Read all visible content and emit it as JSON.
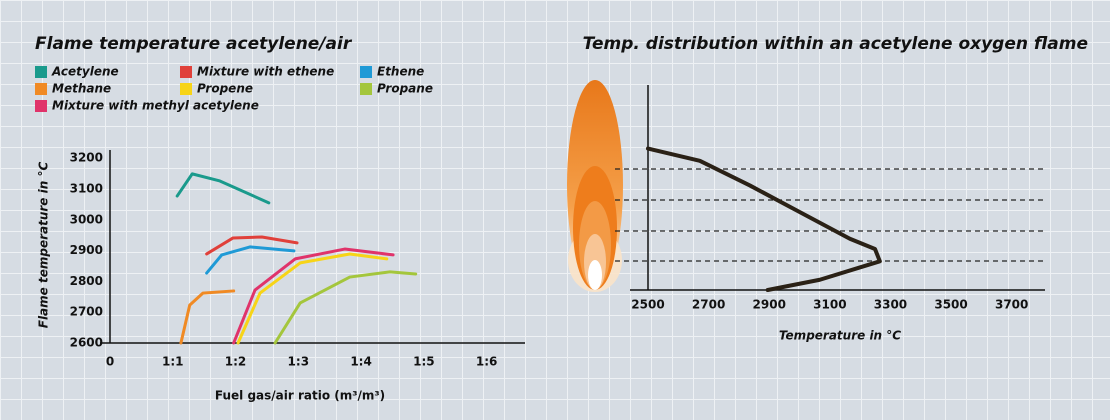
{
  "chart_data": [
    {
      "type": "line",
      "title": "Flame temperature acetylene/air",
      "x_label": "Fuel gas/air ratio (m³/m³)",
      "y_label": "Flame temperature in °C",
      "xlim": [
        0,
        6.5
      ],
      "ylim": [
        2600,
        3220
      ],
      "xticks": [
        0,
        {
          "value": 1,
          "label": "1:1"
        },
        {
          "value": 2,
          "label": "1:2"
        },
        {
          "value": 3,
          "label": "1:3"
        },
        {
          "value": 4,
          "label": "1:4"
        },
        {
          "value": 5,
          "label": "1:5"
        },
        {
          "value": 6,
          "label": "1:6"
        }
      ],
      "yticks": [
        2600,
        2700,
        2800,
        2900,
        3000,
        3100,
        3200
      ],
      "series": [
        {
          "name": "Acetylene",
          "color": "#1a9a8c",
          "x": [
            1.07,
            1.31,
            1.75,
            2.53
          ],
          "values": [
            3077,
            3149,
            3126,
            3055
          ]
        },
        {
          "name": "Mixture with ethene",
          "color": "#e0403a",
          "x": [
            1.54,
            1.96,
            2.42,
            2.98
          ],
          "values": [
            2889,
            2941,
            2944,
            2925
          ]
        },
        {
          "name": "Ethene",
          "color": "#1f9ad6",
          "x": [
            1.54,
            1.78,
            2.23,
            2.93
          ],
          "values": [
            2827,
            2886,
            2912,
            2899
          ]
        },
        {
          "name": "Methane",
          "color": "#f08a24",
          "x": [
            1.13,
            1.27,
            1.48,
            1.97
          ],
          "values": [
            2600,
            2723,
            2762,
            2769
          ]
        },
        {
          "name": "Propene",
          "color": "#f7d417",
          "x": [
            2.04,
            2.39,
            3.03,
            3.82,
            4.41
          ],
          "values": [
            2600,
            2762,
            2860,
            2889,
            2873
          ]
        },
        {
          "name": "Propane",
          "color": "#a4c63c",
          "x": [
            2.63,
            3.03,
            3.82,
            4.46,
            4.87
          ],
          "values": [
            2600,
            2730,
            2814,
            2831,
            2824
          ]
        },
        {
          "name": "Mixture with methyl acetylene",
          "color": "#e0336a",
          "x": [
            1.97,
            2.31,
            2.95,
            3.74,
            4.51
          ],
          "values": [
            2600,
            2772,
            2873,
            2905,
            2886
          ]
        }
      ]
    },
    {
      "type": "line",
      "title": "Temp. distribution within an acetylene oxygen flame",
      "x_label": "Temperature in °C",
      "xlim": [
        2500,
        3800
      ],
      "ylim": [
        0,
        1
      ],
      "xticks": [
        2500,
        2700,
        2900,
        3100,
        3300,
        3500,
        3700
      ],
      "series": [
        {
          "color": "#2a2116",
          "x": [
            2895,
            3067,
            3199,
            3265,
            3249,
            3166,
            3001,
            2836,
            2671,
            2500
          ],
          "values": [
            0,
            0.05,
            0.11,
            0.14,
            0.2,
            0.25,
            0.38,
            0.51,
            0.63,
            0.69
          ]
        }
      ]
    }
  ]
}
